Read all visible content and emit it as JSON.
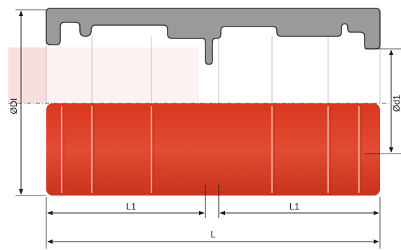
{
  "labels": {
    "outer_diameter": "ØDI",
    "inner_diameter": "Ød1",
    "length_left": "L1",
    "length_right": "L1",
    "total_length": "L"
  },
  "colors": {
    "body_red": "#e0442e",
    "body_red_dark": "#c83220",
    "groove_line": "#f3a08a",
    "cap_gray": "#9a9a9a",
    "cap_stroke": "#3a3a3a",
    "highlight_pink": "#f7d0d0",
    "line": "#1a1a1a"
  }
}
